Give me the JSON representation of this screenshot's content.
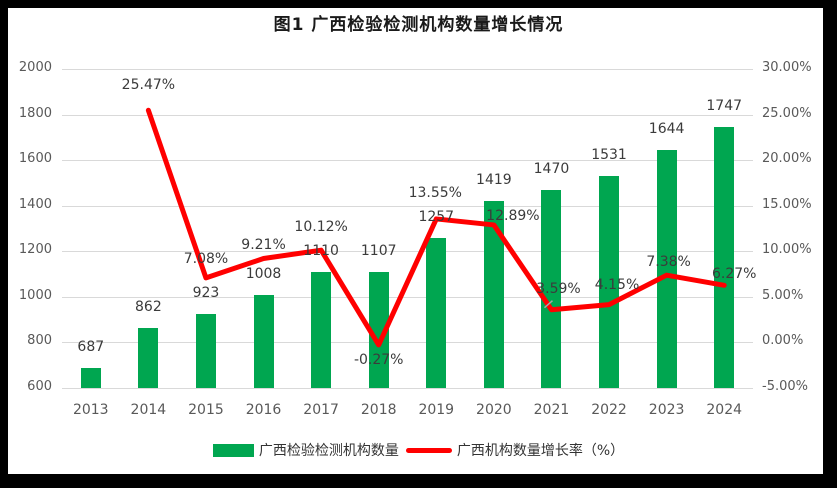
{
  "title": "图1 广西检验检测机构数量增长情况",
  "colors": {
    "bar": "#00A650",
    "line": "#FF0000",
    "axis_text": "#595959",
    "data_label_text": "#3B3B3B",
    "gridline": "#D9D9D9",
    "leader_line": "#A6A6A6",
    "frame": "#000000",
    "background": "#FFFFFF"
  },
  "legend": {
    "items": [
      {
        "label": "广西检验检测机构数量",
        "marker": "bar-swatch"
      },
      {
        "label": "广西机构数量增长率（%）",
        "marker": "line-swatch"
      }
    ]
  },
  "chart_data": {
    "type": "combo-bar-line",
    "title": "图1 广西检验检测机构数量增长情况",
    "categories": [
      "2013",
      "2014",
      "2015",
      "2016",
      "2017",
      "2018",
      "2019",
      "2020",
      "2021",
      "2022",
      "2023",
      "2024"
    ],
    "series": [
      {
        "name": "广西检验检测机构数量",
        "type": "bar",
        "axis": "left",
        "values": [
          687,
          862,
          923,
          1008,
          1110,
          1107,
          1257,
          1419,
          1470,
          1531,
          1644,
          1747
        ],
        "labels": [
          "687",
          "862",
          "923",
          "1008",
          "1110",
          "1107",
          "1257",
          "1419",
          "1470",
          "1531",
          "1644",
          "1747"
        ]
      },
      {
        "name": "广西机构数量增长率（%）",
        "type": "line",
        "axis": "right",
        "values": [
          null,
          25.47,
          7.08,
          9.21,
          10.12,
          -0.27,
          13.55,
          12.89,
          3.59,
          4.15,
          7.38,
          6.27
        ],
        "labels": [
          null,
          "25.47%",
          "7.08%",
          "9.21%",
          "10.12%",
          "-0.27%",
          "13.55%",
          "12.89%",
          "3.59%",
          "4.15%",
          "7.38%",
          "6.27%"
        ],
        "label_offsets": [
          null,
          [
            0,
            -25
          ],
          [
            0,
            -19
          ],
          [
            0,
            -13
          ],
          [
            0,
            -23
          ],
          [
            0,
            15
          ],
          [
            -1,
            -26
          ],
          [
            19,
            -9
          ],
          [
            7,
            -21
          ],
          [
            8,
            -20
          ],
          [
            2,
            -13
          ],
          [
            10,
            -11
          ]
        ]
      }
    ],
    "left_axis": {
      "min": 600,
      "max": 2000,
      "step": 200,
      "ticks": [
        "2000",
        "1800",
        "1600",
        "1400",
        "1200",
        "1000",
        "800",
        "600"
      ]
    },
    "right_axis": {
      "min": -5,
      "max": 30,
      "step": 5,
      "ticks": [
        "30.00%",
        "25.00%",
        "20.00%",
        "15.00%",
        "10.00%",
        "5.00%",
        "0.00%",
        "-5.00%"
      ]
    },
    "grid": true,
    "legend_position": "bottom",
    "annotations": [
      {
        "type": "leader-line",
        "series": 1,
        "index": 8
      }
    ]
  }
}
